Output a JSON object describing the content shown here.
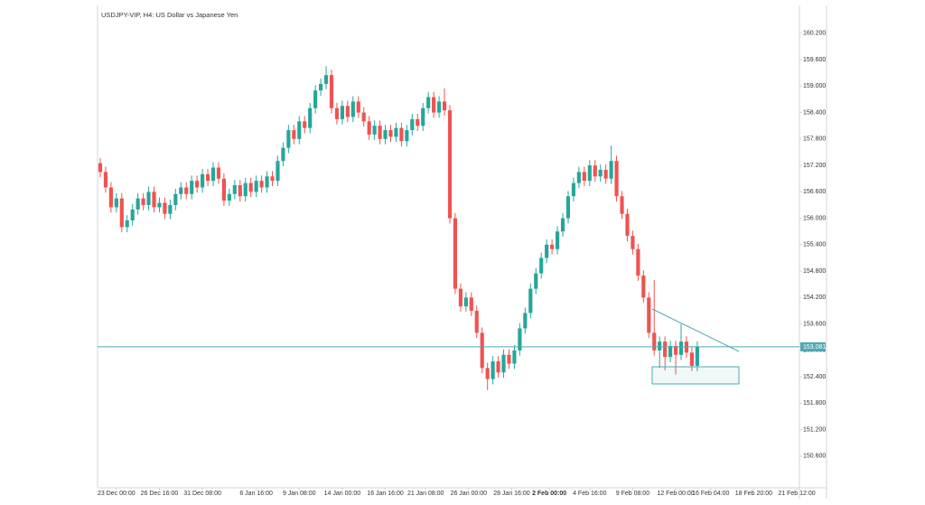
{
  "chart_data": {
    "type": "candlestick",
    "title": "USDJPY-VIP, H4: US Dollar vs Japanese Yen",
    "up_color": "#26a69a",
    "down_color": "#ef5350",
    "price_line_color": "#4fa9b0",
    "current_price": 153.081,
    "open": [
      157.25,
      157.05,
      156.7,
      156.25,
      156.45,
      155.8,
      155.95,
      156.2,
      156.45,
      156.3,
      156.6,
      156.25,
      156.35,
      156.1,
      156.3,
      156.55,
      156.7,
      156.55,
      156.85,
      156.7,
      157.0,
      156.85,
      157.15,
      156.9,
      156.4,
      156.55,
      156.75,
      156.5,
      156.8,
      156.6,
      156.85,
      156.7,
      156.95,
      156.85,
      157.3,
      157.6,
      158.0,
      157.8,
      158.2,
      158.05,
      158.5,
      158.9,
      159.05,
      159.25,
      158.5,
      158.25,
      158.55,
      158.3,
      158.65,
      158.4,
      158.2,
      157.9,
      158.1,
      157.8,
      158.0,
      157.85,
      158.05,
      157.75,
      158.0,
      158.25,
      158.1,
      158.5,
      158.75,
      158.4,
      158.65,
      158.45,
      156.0,
      154.4,
      154.0,
      154.2,
      153.9,
      153.4,
      152.6,
      152.35,
      152.75,
      152.5,
      152.9,
      152.7,
      153.0,
      153.5,
      153.85,
      154.4,
      154.75,
      155.1,
      155.4,
      155.3,
      155.7,
      156.0,
      156.5,
      156.8,
      157.05,
      156.85,
      157.2,
      156.95,
      157.1,
      156.9,
      157.3,
      156.5,
      156.1,
      155.6,
      155.3,
      154.7,
      154.2,
      153.4,
      153.0,
      153.2,
      152.85,
      153.1,
      152.9,
      153.2,
      152.95,
      152.65
    ],
    "high": [
      157.37,
      157.17,
      156.82,
      156.57,
      156.57,
      156.07,
      156.32,
      156.57,
      156.57,
      156.72,
      156.72,
      156.47,
      156.47,
      156.42,
      156.67,
      156.82,
      156.82,
      156.97,
      156.97,
      157.12,
      157.12,
      157.27,
      157.27,
      157.02,
      156.67,
      156.87,
      156.87,
      156.92,
      156.92,
      156.97,
      156.97,
      157.07,
      157.07,
      157.42,
      157.72,
      158.12,
      158.12,
      158.32,
      158.32,
      158.62,
      159.02,
      159.17,
      159.45,
      159.37,
      158.62,
      158.67,
      158.67,
      158.77,
      158.77,
      158.52,
      158.32,
      158.22,
      158.22,
      158.12,
      158.12,
      158.17,
      158.17,
      158.12,
      158.37,
      158.37,
      158.62,
      158.87,
      158.87,
      158.77,
      158.95,
      158.57,
      156.12,
      154.52,
      154.32,
      154.32,
      154.02,
      153.52,
      152.72,
      152.87,
      152.87,
      153.02,
      153.02,
      153.12,
      153.62,
      153.97,
      154.52,
      154.87,
      155.22,
      155.52,
      155.52,
      155.82,
      156.12,
      156.62,
      156.92,
      157.17,
      157.17,
      157.32,
      157.32,
      157.22,
      157.22,
      157.65,
      157.42,
      156.62,
      156.22,
      155.72,
      155.42,
      154.82,
      154.32,
      154.6,
      153.32,
      153.32,
      153.22,
      153.22,
      153.6,
      153.32,
      153.07,
      153.2
    ],
    "low": [
      156.93,
      156.58,
      156.13,
      156.13,
      155.68,
      155.68,
      155.83,
      156.08,
      156.18,
      156.18,
      156.13,
      156.13,
      155.98,
      155.98,
      156.18,
      156.43,
      156.43,
      156.43,
      156.58,
      156.58,
      156.73,
      156.73,
      156.78,
      156.28,
      156.28,
      156.43,
      156.38,
      156.38,
      156.48,
      156.48,
      156.58,
      156.58,
      156.73,
      156.73,
      157.18,
      157.48,
      157.68,
      157.68,
      157.93,
      157.93,
      158.38,
      158.78,
      158.93,
      158.38,
      158.13,
      158.13,
      158.18,
      158.18,
      158.28,
      158.08,
      157.78,
      157.78,
      157.68,
      157.68,
      157.73,
      157.73,
      157.63,
      157.63,
      157.88,
      157.98,
      157.98,
      158.38,
      158.28,
      158.28,
      158.33,
      155.88,
      154.28,
      153.88,
      153.88,
      153.78,
      153.28,
      152.48,
      152.1,
      152.23,
      152.38,
      152.38,
      152.58,
      152.58,
      152.88,
      153.38,
      153.73,
      154.28,
      154.63,
      154.98,
      155.18,
      155.18,
      155.58,
      155.88,
      156.38,
      156.68,
      156.73,
      156.73,
      156.83,
      156.83,
      156.78,
      156.78,
      156.38,
      155.98,
      155.48,
      155.18,
      154.58,
      154.08,
      153.28,
      152.88,
      152.6,
      152.55,
      152.73,
      152.45,
      152.78,
      152.83,
      152.53,
      152.53
    ],
    "close": [
      157.05,
      156.7,
      156.25,
      156.45,
      155.8,
      155.95,
      156.2,
      156.45,
      156.3,
      156.6,
      156.25,
      156.35,
      156.1,
      156.3,
      156.55,
      156.7,
      156.55,
      156.85,
      156.7,
      157.0,
      156.85,
      157.15,
      156.9,
      156.4,
      156.55,
      156.75,
      156.5,
      156.8,
      156.6,
      156.85,
      156.7,
      156.95,
      156.85,
      157.3,
      157.6,
      158.0,
      157.8,
      158.2,
      158.05,
      158.5,
      158.9,
      159.05,
      159.25,
      158.5,
      158.25,
      158.55,
      158.3,
      158.65,
      158.4,
      158.2,
      157.9,
      158.1,
      157.8,
      158.0,
      157.85,
      158.05,
      157.75,
      158.0,
      158.25,
      158.1,
      158.5,
      158.75,
      158.4,
      158.65,
      158.45,
      156.0,
      154.4,
      154.0,
      154.2,
      153.9,
      153.4,
      152.6,
      152.35,
      152.75,
      152.5,
      152.9,
      152.7,
      153.0,
      153.5,
      153.85,
      154.4,
      154.75,
      155.1,
      155.4,
      155.3,
      155.7,
      156.0,
      156.5,
      156.8,
      157.05,
      156.85,
      157.2,
      156.95,
      157.1,
      156.9,
      157.3,
      156.5,
      156.1,
      155.6,
      155.3,
      154.7,
      154.2,
      153.4,
      153.0,
      153.2,
      152.85,
      153.1,
      152.9,
      153.2,
      152.95,
      152.65,
      153.08
    ],
    "xlim": [
      -0.5,
      130
    ],
    "xticks": [
      {
        "value": 3,
        "label": "23 Dec 00:00"
      },
      {
        "value": 11,
        "label": "26 Dec 16:00"
      },
      {
        "value": 19,
        "label": "31 Dec 08:00"
      },
      {
        "value": 29,
        "label": "6 Jan 16:00"
      },
      {
        "value": 37,
        "label": "9 Jan 08:00"
      },
      {
        "value": 45,
        "label": "14 Jan 00:00"
      },
      {
        "value": 53,
        "label": "16 Jan 16:00"
      },
      {
        "value": 60.5,
        "label": "21 Jan 08:00"
      },
      {
        "value": 68.5,
        "label": "26 Jan 00:00"
      },
      {
        "value": 76.5,
        "label": "28 Jan 16:00"
      },
      {
        "value": 83.5,
        "label": "2 Feb 00:00",
        "bold": true
      },
      {
        "value": 91,
        "label": "4 Feb 16:00"
      },
      {
        "value": 99,
        "label": "9 Feb 08:00"
      },
      {
        "value": 107,
        "label": "12 Feb 00:00"
      },
      {
        "value": 113.5,
        "label": "16 Feb 04:00"
      },
      {
        "value": 121.5,
        "label": "18 Feb 20:00"
      },
      {
        "value": 129.5,
        "label": "21 Feb 12:00"
      }
    ],
    "ylim": [
      149.88,
      160.75
    ],
    "yticks": [
      {
        "value": 160.2,
        "label": "160.200"
      },
      {
        "value": 159.6,
        "label": "159.600"
      },
      {
        "value": 159.0,
        "label": "159.000"
      },
      {
        "value": 158.4,
        "label": "158.400"
      },
      {
        "value": 157.8,
        "label": "157.800"
      },
      {
        "value": 157.2,
        "label": "157.200"
      },
      {
        "value": 156.6,
        "label": "156.600"
      },
      {
        "value": 156.0,
        "label": "156.000"
      },
      {
        "value": 155.4,
        "label": "155.400"
      },
      {
        "value": 154.8,
        "label": "154.800"
      },
      {
        "value": 154.2,
        "label": "154.200"
      },
      {
        "value": 153.6,
        "label": "153.600"
      },
      {
        "value": 153.0,
        "label": "153.000"
      },
      {
        "value": 152.4,
        "label": "152.400"
      },
      {
        "value": 151.8,
        "label": "151.800"
      },
      {
        "value": 151.2,
        "label": "151.200"
      },
      {
        "value": 150.6,
        "label": "150.600"
      }
    ]
  }
}
